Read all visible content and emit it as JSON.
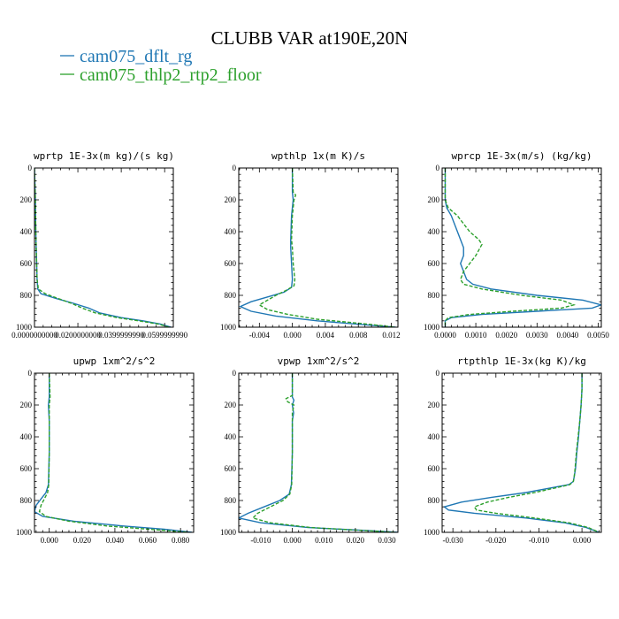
{
  "figure": {
    "title": "CLUBB VAR at190E,20N",
    "legend": [
      {
        "label": "cam075_dflt_rg",
        "color": "#1f77b4",
        "style": "solid"
      },
      {
        "label": "cam075_thlp2_rtp2_floor",
        "color": "#2ca02c",
        "style": "dashed"
      }
    ]
  },
  "chart_data": [
    {
      "type": "line",
      "title": "wprtp  1E-3x(m kg)/(s kg)",
      "xlim": [
        0,
        0.064
      ],
      "ylim": [
        1000,
        0
      ],
      "xticks": [
        0,
        0.02,
        0.04,
        0.06
      ],
      "xtick_labels": [
        "0.0000000000",
        "0.0200000000",
        "0.0399999990",
        "0.0599999990"
      ],
      "yticks": [
        0,
        200,
        400,
        600,
        800,
        1000
      ],
      "series": [
        {
          "name": "cam075_dflt_rg",
          "y": [
            0,
            100,
            200,
            300,
            400,
            500,
            600,
            700,
            760,
            790,
            820,
            850,
            880,
            910,
            940,
            960,
            980,
            1000
          ],
          "x": [
            0,
            0.0002,
            0.0004,
            0.0005,
            0.0006,
            0.0008,
            0.001,
            0.0012,
            0.0015,
            0.003,
            0.01,
            0.018,
            0.025,
            0.03,
            0.04,
            0.05,
            0.058,
            0.063
          ]
        },
        {
          "name": "cam075_thlp2_rtp2_floor",
          "y": [
            0,
            100,
            200,
            300,
            400,
            500,
            600,
            700,
            760,
            790,
            820,
            850,
            880,
            910,
            940,
            960,
            980,
            1000
          ],
          "x": [
            0,
            0.0002,
            0.0004,
            0.0005,
            0.0006,
            0.0008,
            0.001,
            0.0012,
            0.0018,
            0.005,
            0.011,
            0.017,
            0.022,
            0.028,
            0.038,
            0.048,
            0.057,
            0.062
          ]
        }
      ]
    },
    {
      "type": "line",
      "title": "wpthlp  1x(m K)/s",
      "xlim": [
        -0.0065,
        0.0128
      ],
      "ylim": [
        1000,
        0
      ],
      "xticks": [
        -0.004,
        0,
        0.004,
        0.008,
        0.012
      ],
      "xtick_labels": [
        "-0.004",
        "0.000",
        "0.004",
        "0.008",
        "0.012"
      ],
      "yticks": [
        0,
        200,
        400,
        600,
        800,
        1000
      ],
      "series": [
        {
          "name": "cam075_dflt_rg",
          "y": [
            0,
            150,
            200,
            300,
            450,
            500,
            600,
            700,
            750,
            780,
            810,
            840,
            870,
            900,
            930,
            960,
            990,
            1000
          ],
          "x": [
            0,
            0,
            0.0001,
            -0.0001,
            -0.0002,
            -0.0002,
            -0.0001,
            0,
            -0.0001,
            -0.001,
            -0.003,
            -0.005,
            -0.0063,
            -0.005,
            -0.002,
            0.003,
            0.01,
            0.0125
          ]
        },
        {
          "name": "cam075_thlp2_rtp2_floor",
          "y": [
            0,
            150,
            170,
            200,
            300,
            450,
            500,
            600,
            700,
            740,
            770,
            800,
            830,
            860,
            890,
            920,
            950,
            980,
            1000
          ],
          "x": [
            0,
            0.0001,
            0.0004,
            0.0002,
            0,
            -0.0001,
            0,
            0.0001,
            0.0003,
            0.0002,
            -0.0008,
            -0.002,
            -0.003,
            -0.004,
            -0.003,
            -0.0005,
            0.003,
            0.009,
            0.0125
          ]
        }
      ]
    },
    {
      "type": "line",
      "title": "wprcp  1E-3x(m/s) (kg/kg)",
      "xlim": [
        -0.0001,
        0.0051
      ],
      "ylim": [
        1000,
        0
      ],
      "xticks": [
        0,
        0.001,
        0.002,
        0.003,
        0.004,
        0.005
      ],
      "xtick_labels": [
        "0.0000",
        "0.0010",
        "0.0020",
        "0.0030",
        "0.0040",
        "0.0050"
      ],
      "yticks": [
        0,
        200,
        400,
        600,
        800,
        1000
      ],
      "series": [
        {
          "name": "cam075_dflt_rg",
          "y": [
            0,
            200,
            250,
            300,
            400,
            500,
            550,
            600,
            650,
            700,
            730,
            760,
            800,
            830,
            860,
            880,
            900,
            920,
            940,
            960,
            1000
          ],
          "x": [
            0,
            0,
            5e-05,
            0.0002,
            0.0004,
            0.0006,
            0.0006,
            0.0005,
            0.0006,
            0.0007,
            0.0009,
            0.0015,
            0.003,
            0.0045,
            0.0051,
            0.0048,
            0.003,
            0.0012,
            0.0002,
            0,
            0
          ]
        },
        {
          "name": "cam075_thlp2_rtp2_floor",
          "y": [
            0,
            200,
            250,
            300,
            400,
            450,
            480,
            550,
            600,
            650,
            700,
            730,
            760,
            800,
            830,
            860,
            880,
            900,
            920,
            940,
            960,
            1000
          ],
          "x": [
            0,
            0,
            0.0001,
            0.0004,
            0.0008,
            0.0011,
            0.0012,
            0.001,
            0.0008,
            0.0006,
            0.0005,
            0.0006,
            0.0012,
            0.0025,
            0.0038,
            0.0042,
            0.0038,
            0.0022,
            0.0008,
            0.0001,
            0,
            0
          ]
        }
      ]
    },
    {
      "type": "line",
      "title": "upwp  1xm^2/s^2",
      "xlim": [
        -0.009,
        0.088
      ],
      "ylim": [
        1000,
        0
      ],
      "xticks": [
        0,
        0.02,
        0.04,
        0.06,
        0.08
      ],
      "xtick_labels": [
        "0.000",
        "0.020",
        "0.040",
        "0.060",
        "0.080"
      ],
      "yticks": [
        0,
        200,
        400,
        600,
        800,
        1000
      ],
      "series": [
        {
          "name": "cam075_dflt_rg",
          "y": [
            0,
            150,
            200,
            300,
            500,
            700,
            750,
            790,
            830,
            870,
            900,
            930,
            960,
            980,
            1000
          ],
          "x": [
            0,
            0,
            -0.0005,
            0,
            0,
            -0.0005,
            -0.002,
            -0.005,
            -0.008,
            -0.009,
            -0.004,
            0.015,
            0.045,
            0.07,
            0.087
          ]
        },
        {
          "name": "cam075_thlp2_rtp2_floor",
          "y": [
            0,
            150,
            200,
            300,
            500,
            700,
            750,
            790,
            830,
            870,
            900,
            930,
            960,
            980,
            1000
          ],
          "x": [
            0,
            0.0005,
            0,
            0,
            0,
            -0.0003,
            -0.001,
            -0.003,
            -0.005,
            -0.006,
            -0.002,
            0.012,
            0.035,
            0.06,
            0.085
          ]
        }
      ]
    },
    {
      "type": "line",
      "title": "vpwp  1xm^2/s^2",
      "xlim": [
        -0.017,
        0.0335
      ],
      "ylim": [
        1000,
        0
      ],
      "xticks": [
        -0.01,
        0,
        0.01,
        0.02,
        0.03
      ],
      "xtick_labels": [
        "-0.010",
        "0.000",
        "0.010",
        "0.020",
        "0.030"
      ],
      "yticks": [
        0,
        200,
        400,
        600,
        800,
        1000
      ],
      "series": [
        {
          "name": "cam075_dflt_rg",
          "y": [
            0,
            150,
            170,
            200,
            250,
            300,
            500,
            700,
            760,
            800,
            840,
            880,
            910,
            940,
            970,
            990,
            1000
          ],
          "x": [
            0,
            0,
            0.0005,
            0,
            0.0004,
            0,
            0,
            -0.0003,
            -0.001,
            -0.004,
            -0.009,
            -0.014,
            -0.017,
            -0.01,
            0.005,
            0.025,
            0.0335
          ]
        },
        {
          "name": "cam075_thlp2_rtp2_floor",
          "y": [
            0,
            140,
            160,
            180,
            200,
            250,
            300,
            500,
            700,
            760,
            800,
            840,
            880,
            910,
            940,
            970,
            990,
            1000
          ],
          "x": [
            0,
            0,
            -0.002,
            -0.0015,
            0.0005,
            0,
            0,
            0,
            -0.0002,
            -0.0008,
            -0.003,
            -0.007,
            -0.011,
            -0.0125,
            -0.007,
            0.006,
            0.024,
            0.033
          ]
        }
      ]
    },
    {
      "type": "line",
      "title": "rtpthlp  1E-3x(kg K)/kg",
      "xlim": [
        -0.0325,
        0.0045
      ],
      "ylim": [
        1000,
        0
      ],
      "xticks": [
        -0.03,
        -0.02,
        -0.01,
        0
      ],
      "xtick_labels": [
        "-0.030",
        "-0.020",
        "-0.010",
        "0.000"
      ],
      "yticks": [
        0,
        200,
        400,
        600,
        800,
        1000
      ],
      "series": [
        {
          "name": "cam075_dflt_rg",
          "y": [
            0,
            100,
            200,
            300,
            400,
            500,
            600,
            650,
            680,
            700,
            720,
            750,
            780,
            810,
            840,
            860,
            880,
            910,
            940,
            970,
            1000
          ],
          "x": [
            0,
            0,
            -0.0002,
            -0.0005,
            -0.0008,
            -0.0012,
            -0.0015,
            -0.0018,
            -0.002,
            -0.003,
            -0.007,
            -0.013,
            -0.021,
            -0.028,
            -0.032,
            -0.031,
            -0.025,
            -0.013,
            -0.004,
            0.001,
            0.004
          ]
        },
        {
          "name": "cam075_thlp2_rtp2_floor",
          "y": [
            0,
            100,
            200,
            300,
            400,
            500,
            600,
            650,
            680,
            700,
            720,
            750,
            780,
            810,
            840,
            860,
            880,
            910,
            940,
            970,
            1000
          ],
          "x": [
            0,
            0,
            -0.0002,
            -0.0005,
            -0.0009,
            -0.0013,
            -0.0016,
            -0.0018,
            -0.002,
            -0.0028,
            -0.006,
            -0.011,
            -0.017,
            -0.022,
            -0.025,
            -0.0245,
            -0.02,
            -0.011,
            -0.003,
            0.0015,
            0.004
          ]
        }
      ]
    }
  ]
}
